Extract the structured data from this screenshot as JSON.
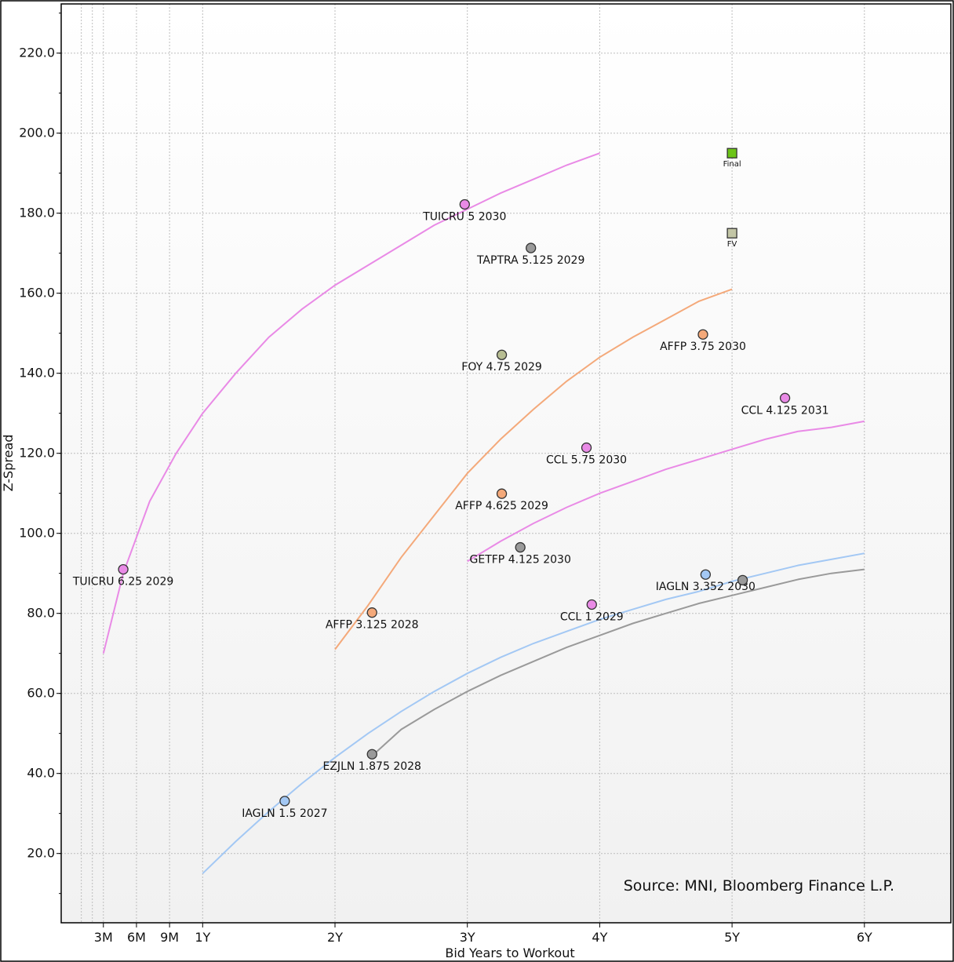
{
  "chart_data": {
    "type": "scatter",
    "xlabel": "Bid Years to Workout",
    "ylabel": "Z-Spread",
    "source": "Source: MNI, Bloomberg Finance L.P.",
    "xlim": [
      -0.1,
      6.5
    ],
    "ylim": [
      6,
      233
    ],
    "x_ticks": [
      {
        "value": 0.25,
        "label": "3M"
      },
      {
        "value": 0.5,
        "label": "6M"
      },
      {
        "value": 0.75,
        "label": "9M"
      },
      {
        "value": 1,
        "label": "1Y"
      },
      {
        "value": 2,
        "label": "2Y"
      },
      {
        "value": 3,
        "label": "3Y"
      },
      {
        "value": 4,
        "label": "4Y"
      },
      {
        "value": 5,
        "label": "5Y"
      },
      {
        "value": 6,
        "label": "6Y"
      }
    ],
    "x_minor_grid": [
      0.0833,
      0.1667,
      0.25,
      0.5,
      0.75,
      1,
      2,
      3,
      4,
      5,
      6
    ],
    "y_ticks": [
      {
        "value": 20,
        "label": "20.0"
      },
      {
        "value": 40,
        "label": "40.0"
      },
      {
        "value": 60,
        "label": "60.0"
      },
      {
        "value": 80,
        "label": "80.0"
      },
      {
        "value": 100,
        "label": "100.0"
      },
      {
        "value": 120,
        "label": "120.0"
      },
      {
        "value": 140,
        "label": "140.0"
      },
      {
        "value": 160,
        "label": "160.0"
      },
      {
        "value": 180,
        "label": "180.0"
      },
      {
        "value": 200,
        "label": "200.0"
      },
      {
        "value": 220,
        "label": "220.0"
      }
    ],
    "curves": [
      {
        "name": "TUICRU curve",
        "color": "#e98ae6",
        "points": [
          [
            0.25,
            70
          ],
          [
            0.4,
            90
          ],
          [
            0.6,
            108
          ],
          [
            0.8,
            120
          ],
          [
            1,
            130
          ],
          [
            1.25,
            140
          ],
          [
            1.5,
            149
          ],
          [
            1.75,
            156
          ],
          [
            2,
            162
          ],
          [
            2.25,
            167
          ],
          [
            2.5,
            172
          ],
          [
            2.75,
            177
          ],
          [
            3,
            181
          ],
          [
            3.25,
            185
          ],
          [
            3.5,
            188.5
          ],
          [
            3.75,
            192
          ],
          [
            4,
            195
          ]
        ]
      },
      {
        "name": "AFFP curve",
        "color": "#f4a97a",
        "points": [
          [
            2,
            71
          ],
          [
            2.25,
            82
          ],
          [
            2.5,
            94
          ],
          [
            2.75,
            104.5
          ],
          [
            3,
            115
          ],
          [
            3.25,
            123.5
          ],
          [
            3.5,
            131
          ],
          [
            3.75,
            138
          ],
          [
            4,
            144
          ],
          [
            4.25,
            149
          ],
          [
            4.5,
            153.5
          ],
          [
            4.75,
            158
          ],
          [
            5,
            161
          ]
        ]
      },
      {
        "name": "CCL curve",
        "color": "#e98ae6",
        "points": [
          [
            3,
            93
          ],
          [
            3.25,
            98
          ],
          [
            3.5,
            102.5
          ],
          [
            3.75,
            106.5
          ],
          [
            4,
            110
          ],
          [
            4.25,
            113
          ],
          [
            4.5,
            116
          ],
          [
            4.75,
            118.5
          ],
          [
            5,
            121
          ],
          [
            5.25,
            123.5
          ],
          [
            5.5,
            125.5
          ],
          [
            5.75,
            126.5
          ],
          [
            6,
            128
          ]
        ]
      },
      {
        "name": "IAGLN curve",
        "color": "#a3c8f4",
        "points": [
          [
            1,
            15
          ],
          [
            1.25,
            23
          ],
          [
            1.5,
            30.5
          ],
          [
            1.75,
            37.5
          ],
          [
            2,
            44
          ],
          [
            2.25,
            50
          ],
          [
            2.5,
            55.5
          ],
          [
            2.75,
            60.5
          ],
          [
            3,
            65
          ],
          [
            3.25,
            69
          ],
          [
            3.5,
            72.5
          ],
          [
            3.75,
            75.5
          ],
          [
            4,
            78.5
          ],
          [
            4.25,
            81
          ],
          [
            4.5,
            83.5
          ],
          [
            4.75,
            85.5
          ],
          [
            5,
            88
          ],
          [
            5.25,
            90
          ],
          [
            5.5,
            92
          ],
          [
            5.75,
            93.5
          ],
          [
            6,
            95
          ]
        ]
      },
      {
        "name": "EZJLN curve",
        "color": "#9a9a9a",
        "points": [
          [
            2.3,
            45
          ],
          [
            2.5,
            51
          ],
          [
            2.75,
            56
          ],
          [
            3,
            60.5
          ],
          [
            3.25,
            64.5
          ],
          [
            3.5,
            68
          ],
          [
            3.75,
            71.5
          ],
          [
            4,
            74.5
          ],
          [
            4.25,
            77.5
          ],
          [
            4.5,
            80
          ],
          [
            4.75,
            82.5
          ],
          [
            5,
            84.5
          ],
          [
            5.25,
            86.5
          ],
          [
            5.5,
            88.5
          ],
          [
            5.75,
            90
          ],
          [
            6,
            91
          ]
        ]
      }
    ],
    "points": [
      {
        "label": "TUICRU 5 2030",
        "x": 2.98,
        "y": 182.2,
        "color": "#e98ae6"
      },
      {
        "label": "TAPTRA 5.125 2029",
        "x": 3.48,
        "y": 171.3,
        "color": "#9a9a9a"
      },
      {
        "label": "FOY 4.75 2029",
        "x": 3.26,
        "y": 144.6,
        "color": "#b7bd92"
      },
      {
        "label": "AFFP 3.75 2030",
        "x": 4.78,
        "y": 149.7,
        "color": "#f4a97a"
      },
      {
        "label": "CCL 4.125 2031",
        "x": 5.4,
        "y": 133.8,
        "color": "#e98ae6"
      },
      {
        "label": "CCL 5.75 2030",
        "x": 3.9,
        "y": 121.4,
        "color": "#e98ae6"
      },
      {
        "label": "AFFP 4.625 2029",
        "x": 3.26,
        "y": 109.9,
        "color": "#f4a97a"
      },
      {
        "label": "GETFP 4.125 2030",
        "x": 3.4,
        "y": 96.5,
        "color": "#9a9a9a"
      },
      {
        "label": "TUICRU 6.25 2029",
        "x": 0.4,
        "y": 91.0,
        "color": "#e98ae6"
      },
      {
        "label": "IAGLN 3.352 2030",
        "x": 4.8,
        "y": 89.7,
        "color": "#a3c8f4"
      },
      {
        "label": "",
        "x": 5.08,
        "y": 88.3,
        "color": "#9a9a9a"
      },
      {
        "label": "CCL 1 2029",
        "x": 3.94,
        "y": 82.2,
        "color": "#e98ae6"
      },
      {
        "label": "AFFP 3.125 2028",
        "x": 2.28,
        "y": 80.2,
        "color": "#f4a97a"
      },
      {
        "label": "EZJLN 1.875 2028",
        "x": 2.28,
        "y": 44.8,
        "color": "#9a9a9a"
      },
      {
        "label": "IAGLN 1.5 2027",
        "x": 1.62,
        "y": 33.1,
        "color": "#a3c8f4"
      }
    ],
    "markers": [
      {
        "label": "Final",
        "x": 5.0,
        "y": 195.0,
        "color": "#6cc417"
      },
      {
        "label": "FV",
        "x": 5.0,
        "y": 175.0,
        "color": "#c3c6a6"
      }
    ]
  }
}
